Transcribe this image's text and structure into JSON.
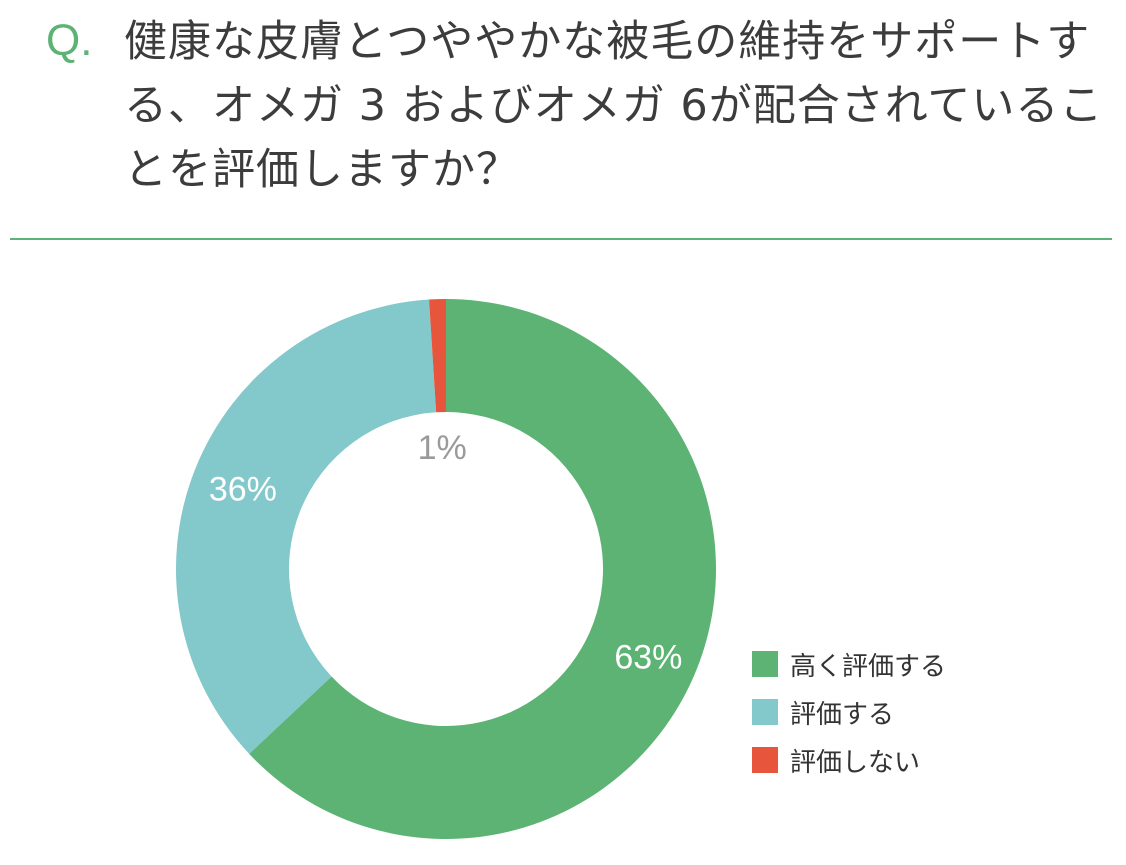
{
  "question": {
    "prefix": "Q.",
    "text": "健康な皮膚とつややかな被毛の維持をサポートする、オメガ 3 およびオメガ 6が配合されていることを評価しますか？"
  },
  "chart_data": {
    "type": "pie",
    "donut": true,
    "title": "",
    "categories": [
      "高く評価する",
      "評価する",
      "評価しない"
    ],
    "values": [
      63,
      36,
      1
    ],
    "unit": "%",
    "colors": [
      "#5cb374",
      "#83c8ca",
      "#e8553d"
    ],
    "label_colors": [
      "#ffffff",
      "#ffffff",
      "#9a9a9a"
    ],
    "legend_position": "bottom-right",
    "start": "top, clockwise"
  }
}
